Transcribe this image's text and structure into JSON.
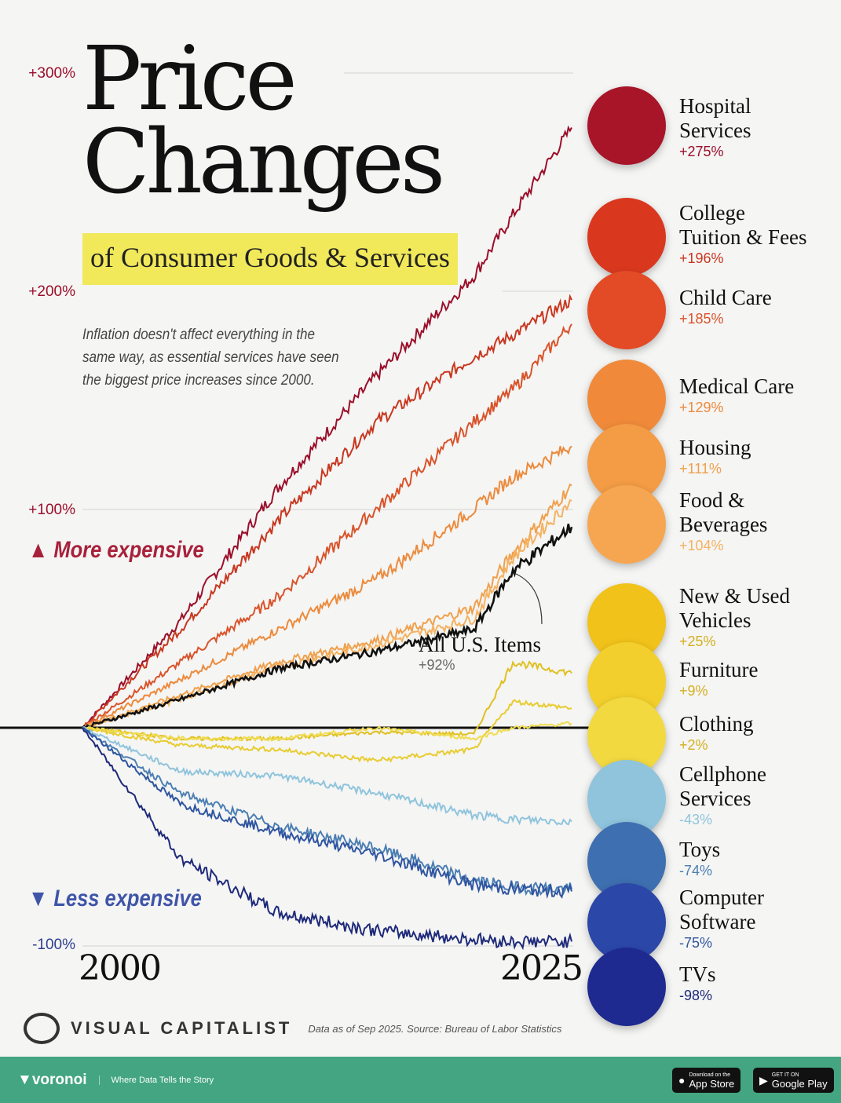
{
  "title": "Price\nChanges",
  "subtitle": "of Consumer Goods & Services",
  "description": "Inflation doesn't affect everything in the same way, as essential services have seen the biggest price increases since 2000.",
  "more_label": "More expensive",
  "less_label": "Less expensive",
  "brand": "VISUAL CAPITALIST",
  "source": "Data as of Sep 2025. Source: Bureau of Labor Statistics",
  "footer": {
    "logo": "voronoi",
    "tagline": "Where Data Tells the Story",
    "app_store": "App Store",
    "app_store_small": "Download on the",
    "google_play": "Google Play",
    "google_play_small": "GET IT ON"
  },
  "chart_data": {
    "type": "line",
    "xlim": [
      2000,
      2025
    ],
    "ylim": [
      -100,
      300
    ],
    "x_tick_labels": [
      "2000",
      "2025"
    ],
    "y_tick_labels": [
      "+300%",
      "+200%",
      "+100%",
      "-100%"
    ],
    "y_ticks": [
      300,
      200,
      100,
      -100
    ],
    "x": [
      2000,
      2005,
      2010,
      2015,
      2020,
      2022,
      2025
    ],
    "series": [
      {
        "name": "Hospital Services",
        "label": "+275%",
        "color": "#9b0f2a",
        "values": [
          0,
          49,
          110,
          161,
          207,
          235,
          275
        ]
      },
      {
        "name": "College Tuition & Fees",
        "label": "+196%",
        "color": "#c8371f",
        "values": [
          0,
          45,
          95,
          140,
          170,
          180,
          196
        ]
      },
      {
        "name": "Child Care",
        "label": "+185%",
        "color": "#d9532a",
        "values": [
          0,
          30,
          60,
          100,
          140,
          155,
          185
        ]
      },
      {
        "name": "Medical Care",
        "label": "+129%",
        "color": "#ec8a3b",
        "values": [
          0,
          22,
          45,
          68,
          100,
          115,
          129
        ]
      },
      {
        "name": "Housing",
        "label": "+111%",
        "color": "#f0a04c",
        "values": [
          0,
          15,
          30,
          40,
          55,
          80,
          111
        ]
      },
      {
        "name": "Food & Beverages",
        "label": "+104%",
        "color": "#f4b261",
        "values": [
          0,
          13,
          28,
          38,
          50,
          78,
          104
        ]
      },
      {
        "name": "All U.S. Items",
        "label": "+92%",
        "color": "#111111",
        "values": [
          0,
          13,
          27,
          35,
          45,
          72,
          92
        ]
      },
      {
        "name": "New & Used Vehicles",
        "label": "+25%",
        "color": "#e0c020",
        "values": [
          0,
          -5,
          -5,
          -2,
          -3,
          30,
          25
        ]
      },
      {
        "name": "Furniture",
        "label": "+9%",
        "color": "#e8cc30",
        "values": [
          0,
          -8,
          -10,
          -15,
          -10,
          12,
          9
        ]
      },
      {
        "name": "Clothing",
        "label": "+2%",
        "color": "#f0dc50",
        "values": [
          0,
          -5,
          -5,
          0,
          -5,
          0,
          2
        ]
      },
      {
        "name": "Cellphone Services",
        "label": "-43%",
        "color": "#8fc4dc",
        "values": [
          0,
          -20,
          -22,
          -30,
          -40,
          -42,
          -43
        ]
      },
      {
        "name": "Toys",
        "label": "-74%",
        "color": "#4c7fb3",
        "values": [
          0,
          -30,
          -45,
          -55,
          -70,
          -73,
          -74
        ]
      },
      {
        "name": "Computer Software",
        "label": "-75%",
        "color": "#2f55a0",
        "values": [
          0,
          -35,
          -48,
          -58,
          -72,
          -74,
          -75
        ]
      },
      {
        "name": "TVs",
        "label": "-98%",
        "color": "#1e2a7a",
        "values": [
          0,
          -60,
          -85,
          -93,
          -97,
          -98,
          -98
        ]
      }
    ],
    "annotation": {
      "name": "All U.S. Items",
      "value": "+92%"
    }
  },
  "legend_circles": [
    "#a81528",
    "#d9381f",
    "#e34a26",
    "#f08a3a",
    "#f39b45",
    "#f6a650",
    "#f0c21a",
    "#f2cf2c",
    "#f2d940",
    "#8fc4dc",
    "#3e6fb0",
    "#2b47a8",
    "#1e2a90"
  ]
}
